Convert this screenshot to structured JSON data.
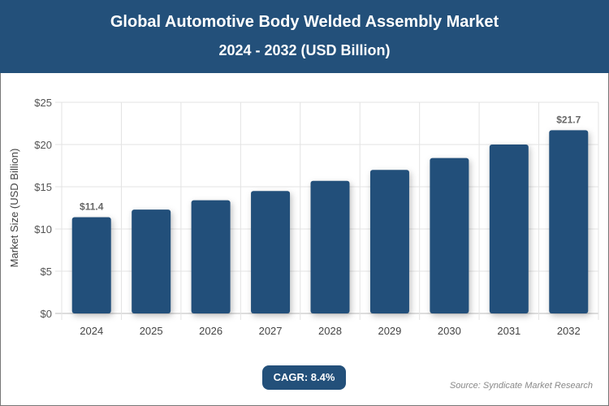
{
  "header": {
    "title": "Global Automotive Body Welded Assembly Market",
    "subtitle": "2024 - 2032 (USD Billion)"
  },
  "chart_data": {
    "type": "bar",
    "title": "Global Automotive Body Welded Assembly Market",
    "subtitle": "2024 - 2032 (USD Billion)",
    "categories": [
      "2024",
      "2025",
      "2026",
      "2027",
      "2028",
      "2029",
      "2030",
      "2031",
      "2032"
    ],
    "values": [
      11.4,
      12.3,
      13.4,
      14.5,
      15.7,
      17.0,
      18.4,
      20.0,
      21.7
    ],
    "data_labels": {
      "0": "$11.4",
      "8": "$21.7"
    },
    "ylabel": "Market Size (USD Billion)",
    "xlabel": "",
    "ylim": [
      0,
      25
    ],
    "yticks": [
      "$0",
      "$5",
      "$10",
      "$15",
      "$20",
      "$25"
    ],
    "grid": true,
    "bar_color": "#23507a"
  },
  "footer": {
    "cagr": "CAGR: 8.4%",
    "source": "Source: Syndicate Market Research"
  }
}
